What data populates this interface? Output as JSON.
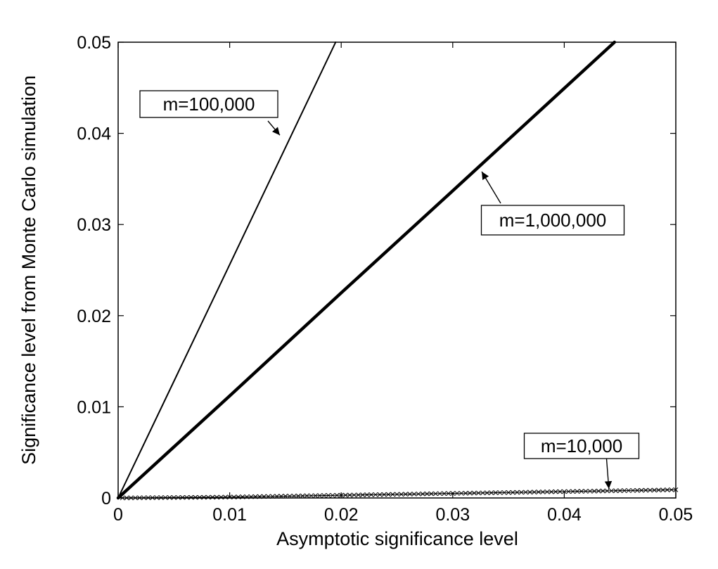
{
  "chart_data": {
    "type": "line",
    "title": "",
    "xlabel": "Asymptotic significance level",
    "ylabel": "Significance level from Monte Carlo simulation",
    "xlim": [
      0,
      0.05
    ],
    "ylim": [
      0,
      0.05
    ],
    "x_ticks": [
      "0",
      "0.01",
      "0.02",
      "0.03",
      "0.04",
      "0.05"
    ],
    "y_ticks": [
      "0",
      "0.01",
      "0.02",
      "0.03",
      "0.04",
      "0.05"
    ],
    "grid": false,
    "legend": "none",
    "series": [
      {
        "name": "m=100,000",
        "x": [
          0,
          0.01,
          0.0195
        ],
        "y": [
          0,
          0.0256,
          0.05
        ],
        "color": "#000000",
        "style": "thin"
      },
      {
        "name": "m=1,000,000",
        "x": [
          0,
          0.01,
          0.02,
          0.03,
          0.0445
        ],
        "y": [
          0,
          0.0112,
          0.0225,
          0.0337,
          0.05
        ],
        "color": "#000000",
        "style": "thick"
      },
      {
        "name": "m=10,000",
        "x": [
          0,
          0.01,
          0.02,
          0.03,
          0.04,
          0.05
        ],
        "y": [
          0,
          0.0001,
          0.0003,
          0.0005,
          0.0007,
          0.0009
        ],
        "color": "#000000",
        "style": "crosses"
      }
    ],
    "annotations": [
      {
        "text": "m=100,000",
        "arrow_to": [
          0.0145,
          0.0398
        ]
      },
      {
        "text": "m=1,000,000",
        "arrow_to": [
          0.0326,
          0.0358
        ]
      },
      {
        "text": "m=10,000",
        "arrow_to": [
          0.044,
          0.001
        ]
      }
    ]
  }
}
